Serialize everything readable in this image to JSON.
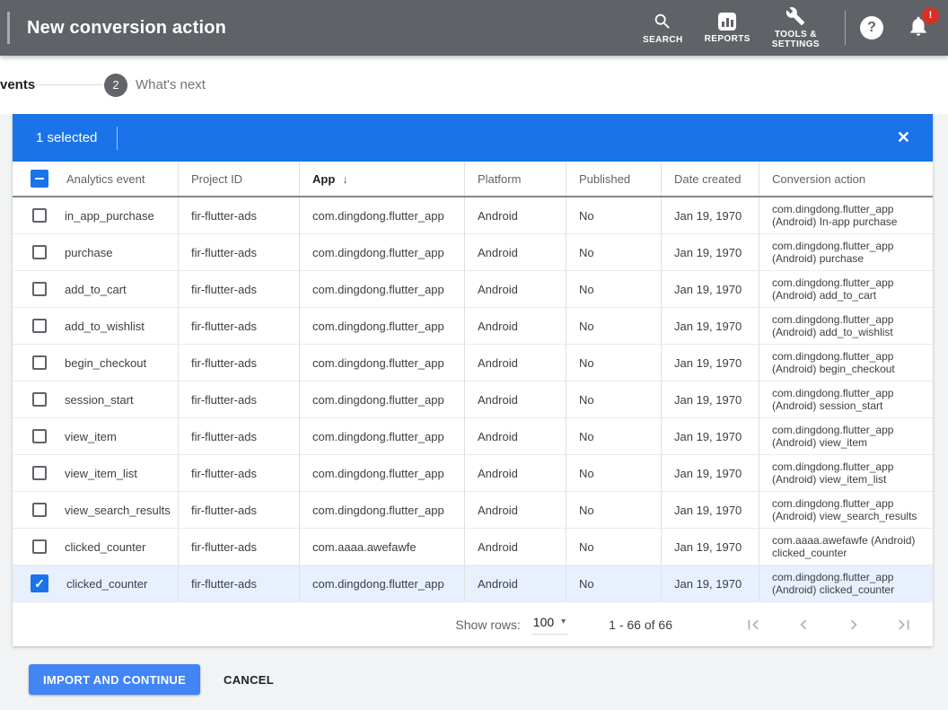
{
  "app_bar": {
    "title": "New conversion action",
    "nav": [
      {
        "label": "SEARCH",
        "icon": "search-icon"
      },
      {
        "label": "REPORTS",
        "icon": "reports-icon"
      },
      {
        "label": "TOOLS &\nSETTINGS",
        "icon": "wrench-icon"
      }
    ],
    "notification_badge": "!"
  },
  "stepper": {
    "step1_label": "vents",
    "step2_number": "2",
    "step2_label": "What's next"
  },
  "selection_bar": {
    "text": "1 selected"
  },
  "icons": {
    "close": "✕",
    "check": "✓",
    "sort_down": "↓",
    "dropdown_caret": "▾",
    "help": "?"
  },
  "table": {
    "columns": [
      "Analytics event",
      "Project ID",
      "App",
      "Platform",
      "Published",
      "Date created",
      "Conversion action"
    ],
    "sorted_column": "App",
    "sort_direction": "descending",
    "rows": [
      {
        "event": "in_app_purchase",
        "project_id": "fir-flutter-ads",
        "app": "com.dingdong.flutter_app",
        "platform": "Android",
        "published": "No",
        "date_created": "Jan 19, 1970",
        "conversion_action": "com.dingdong.flutter_app (Android) In-app purchase",
        "selected": false
      },
      {
        "event": "purchase",
        "project_id": "fir-flutter-ads",
        "app": "com.dingdong.flutter_app",
        "platform": "Android",
        "published": "No",
        "date_created": "Jan 19, 1970",
        "conversion_action": "com.dingdong.flutter_app (Android) purchase",
        "selected": false
      },
      {
        "event": "add_to_cart",
        "project_id": "fir-flutter-ads",
        "app": "com.dingdong.flutter_app",
        "platform": "Android",
        "published": "No",
        "date_created": "Jan 19, 1970",
        "conversion_action": "com.dingdong.flutter_app (Android) add_to_cart",
        "selected": false
      },
      {
        "event": "add_to_wishlist",
        "project_id": "fir-flutter-ads",
        "app": "com.dingdong.flutter_app",
        "platform": "Android",
        "published": "No",
        "date_created": "Jan 19, 1970",
        "conversion_action": "com.dingdong.flutter_app (Android) add_to_wishlist",
        "selected": false
      },
      {
        "event": "begin_checkout",
        "project_id": "fir-flutter-ads",
        "app": "com.dingdong.flutter_app",
        "platform": "Android",
        "published": "No",
        "date_created": "Jan 19, 1970",
        "conversion_action": "com.dingdong.flutter_app (Android) begin_checkout",
        "selected": false
      },
      {
        "event": "session_start",
        "project_id": "fir-flutter-ads",
        "app": "com.dingdong.flutter_app",
        "platform": "Android",
        "published": "No",
        "date_created": "Jan 19, 1970",
        "conversion_action": "com.dingdong.flutter_app (Android) session_start",
        "selected": false
      },
      {
        "event": "view_item",
        "project_id": "fir-flutter-ads",
        "app": "com.dingdong.flutter_app",
        "platform": "Android",
        "published": "No",
        "date_created": "Jan 19, 1970",
        "conversion_action": "com.dingdong.flutter_app (Android) view_item",
        "selected": false
      },
      {
        "event": "view_item_list",
        "project_id": "fir-flutter-ads",
        "app": "com.dingdong.flutter_app",
        "platform": "Android",
        "published": "No",
        "date_created": "Jan 19, 1970",
        "conversion_action": "com.dingdong.flutter_app (Android) view_item_list",
        "selected": false
      },
      {
        "event": "view_search_results",
        "project_id": "fir-flutter-ads",
        "app": "com.dingdong.flutter_app",
        "platform": "Android",
        "published": "No",
        "date_created": "Jan 19, 1970",
        "conversion_action": "com.dingdong.flutter_app (Android) view_search_results",
        "selected": false
      },
      {
        "event": "clicked_counter",
        "project_id": "fir-flutter-ads",
        "app": "com.aaaa.awefawfe",
        "platform": "Android",
        "published": "No",
        "date_created": "Jan 19, 1970",
        "conversion_action": "com.aaaa.awefawfe (Android) clicked_counter",
        "selected": false
      },
      {
        "event": "clicked_counter",
        "project_id": "fir-flutter-ads",
        "app": "com.dingdong.flutter_app",
        "platform": "Android",
        "published": "No",
        "date_created": "Jan 19, 1970",
        "conversion_action": "com.dingdong.flutter_app (Android) clicked_counter",
        "selected": true
      }
    ]
  },
  "footer": {
    "show_rows_label": "Show rows:",
    "show_rows_value": "100",
    "range_text": "1 - 66 of 66",
    "pagination_controls": [
      "first page",
      "previous page",
      "next page",
      "last page"
    ]
  },
  "actions": {
    "primary_label": "IMPORT AND CONTINUE",
    "secondary_label": "CANCEL"
  },
  "colors": {
    "appbar_bg": "#5f6368",
    "selection_bar_blue": "#1a73e8",
    "button_blue": "#4285f4",
    "selected_row_bg": "#e8f0fe",
    "badge_red": "#d93025",
    "content_bg": "#f1f3f4"
  }
}
